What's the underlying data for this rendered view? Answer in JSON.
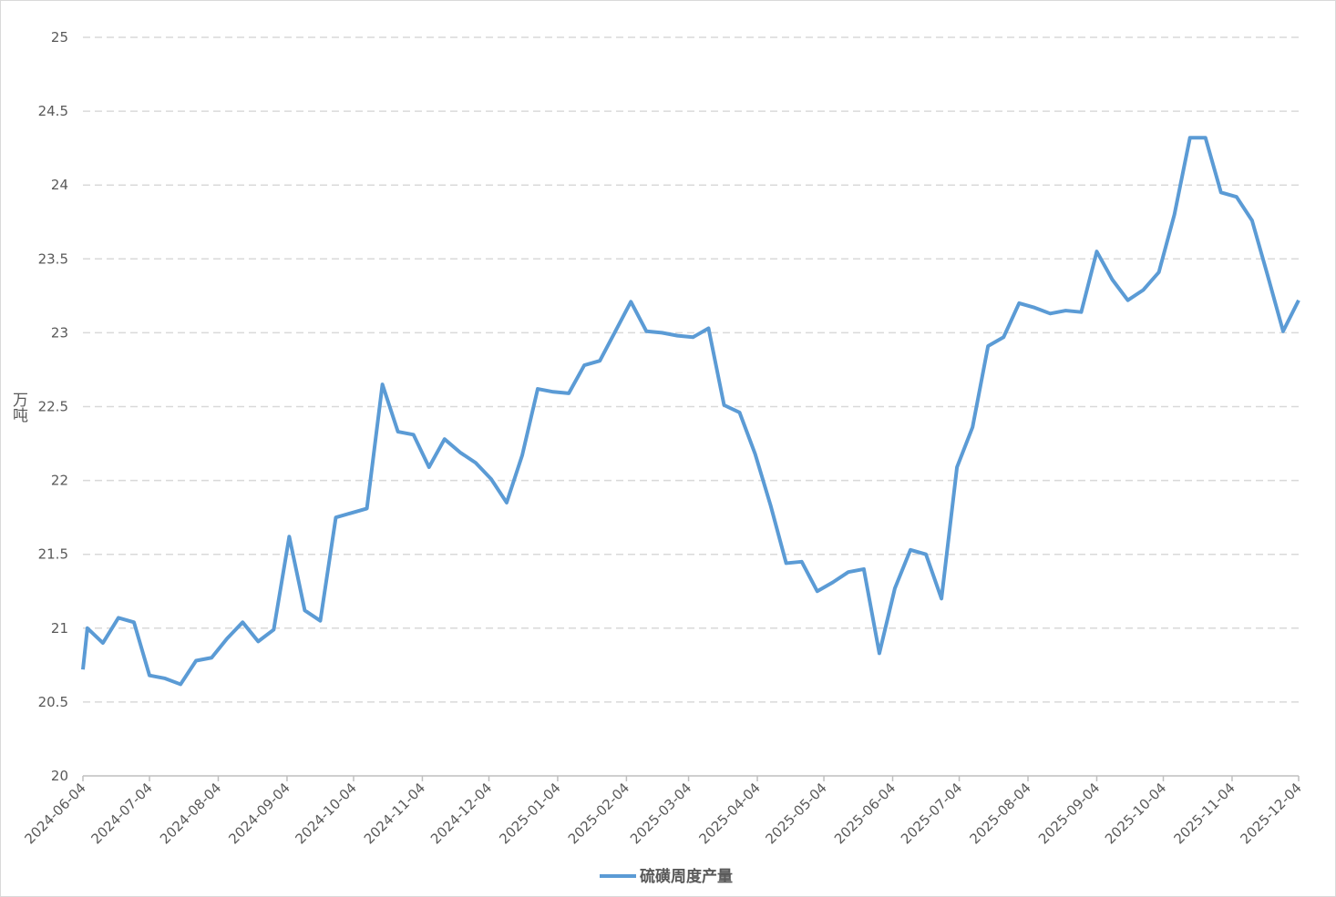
{
  "chart_data": {
    "type": "line",
    "y_label": "万吨",
    "x": [
      "2024-06-04",
      "2024-06-06",
      "2024-06-13",
      "2024-06-20",
      "2024-06-27",
      "2024-07-04",
      "2024-07-11",
      "2024-07-18",
      "2024-07-25",
      "2024-08-01",
      "2024-08-08",
      "2024-08-15",
      "2024-08-22",
      "2024-08-29",
      "2024-09-05",
      "2024-09-12",
      "2024-09-19",
      "2024-09-26",
      "2024-10-03",
      "2024-10-10",
      "2024-10-17",
      "2024-10-24",
      "2024-10-31",
      "2024-11-07",
      "2024-11-14",
      "2024-11-21",
      "2024-11-28",
      "2024-12-05",
      "2024-12-12",
      "2024-12-19",
      "2024-12-26",
      "2025-01-02",
      "2025-01-09",
      "2025-01-16",
      "2025-01-23",
      "2025-01-30",
      "2025-02-06",
      "2025-02-13",
      "2025-02-20",
      "2025-02-27",
      "2025-03-06",
      "2025-03-13",
      "2025-03-20",
      "2025-03-27",
      "2025-04-03",
      "2025-04-10",
      "2025-04-17",
      "2025-04-24",
      "2025-05-01",
      "2025-05-08",
      "2025-05-15",
      "2025-05-22",
      "2025-05-29",
      "2025-06-05",
      "2025-06-12",
      "2025-06-19",
      "2025-06-26",
      "2025-07-03",
      "2025-07-10",
      "2025-07-17",
      "2025-07-24",
      "2025-07-31",
      "2025-08-07",
      "2025-08-14",
      "2025-08-21",
      "2025-08-28",
      "2025-09-04",
      "2025-09-11",
      "2025-09-18",
      "2025-09-25",
      "2025-10-02",
      "2025-10-09",
      "2025-10-16",
      "2025-10-23",
      "2025-10-30",
      "2025-11-06",
      "2025-11-13",
      "2025-11-20",
      "2025-11-27",
      "2025-12-04"
    ],
    "series": [
      {
        "name": "硫磺周度产量",
        "color": "#5b9bd5",
        "values": [
          20.72,
          21.0,
          20.9,
          21.07,
          21.04,
          20.68,
          20.66,
          20.62,
          20.78,
          20.8,
          20.93,
          21.04,
          20.91,
          20.99,
          21.62,
          21.12,
          21.05,
          21.75,
          21.78,
          21.81,
          22.65,
          22.33,
          22.31,
          22.09,
          22.28,
          22.19,
          22.12,
          22.01,
          21.85,
          22.17,
          22.62,
          22.6,
          22.59,
          22.78,
          22.81,
          23.01,
          23.21,
          23.01,
          23.0,
          22.98,
          22.97,
          23.03,
          22.51,
          22.46,
          22.18,
          21.83,
          21.44,
          21.45,
          21.25,
          21.31,
          21.38,
          21.4,
          20.83,
          21.27,
          21.53,
          21.5,
          21.2,
          22.09,
          22.36,
          22.91,
          22.97,
          23.2,
          23.17,
          23.13,
          23.15,
          23.14,
          23.55,
          23.36,
          23.22,
          23.29,
          23.41,
          23.8,
          24.32,
          24.32,
          23.95,
          23.92,
          23.76,
          23.39,
          23.01,
          23.22
        ]
      }
    ],
    "xlim": [
      "2024-06-04",
      "2025-12-04"
    ],
    "xticks": [
      "2024-06-04",
      "2024-07-04",
      "2024-08-04",
      "2024-09-04",
      "2024-10-04",
      "2024-11-04",
      "2024-12-04",
      "2025-01-04",
      "2025-02-04",
      "2025-03-04",
      "2025-04-04",
      "2025-05-04",
      "2025-06-04",
      "2025-07-04",
      "2025-08-04",
      "2025-09-04",
      "2025-10-04",
      "2025-11-04",
      "2025-12-04"
    ],
    "ylim": [
      20,
      25
    ],
    "yticks": [
      20,
      20.5,
      21,
      21.5,
      22,
      22.5,
      23,
      23.5,
      24,
      24.5,
      25
    ],
    "grid": true,
    "legend": "bottom"
  }
}
